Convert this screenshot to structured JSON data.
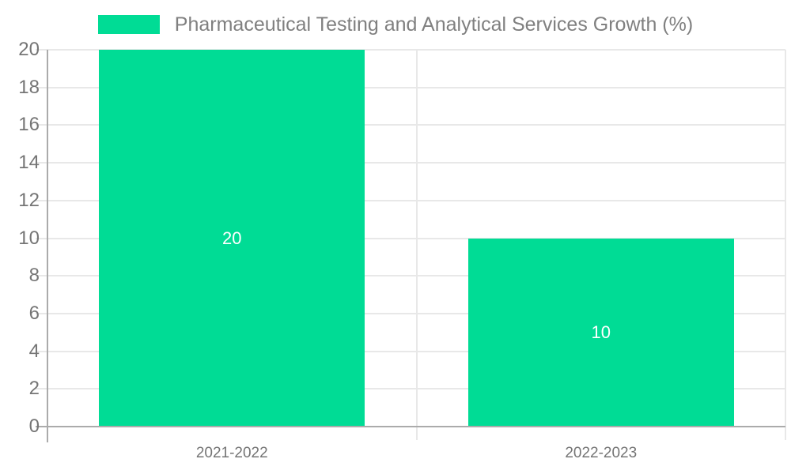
{
  "chart_data": {
    "type": "bar",
    "title": "",
    "series_name": "Pharmaceutical Testing and Analytical Services Growth (%)",
    "categories": [
      "2021-2022",
      "2022-2023"
    ],
    "values": [
      20,
      10
    ],
    "value_labels": [
      "20",
      "10"
    ],
    "xlabel": "",
    "ylabel": "",
    "ylim": [
      0,
      20
    ],
    "ytick_step": 2,
    "ytick_labels": [
      "0",
      "2",
      "4",
      "6",
      "8",
      "10",
      "12",
      "14",
      "16",
      "18",
      "20"
    ],
    "grid": true,
    "legend_position": "top-center",
    "colors": {
      "bar": "#00DC95",
      "grid": "#E8E8E8",
      "axis": "#ABABAB",
      "axis_tick_label": "#757575",
      "legend_text": "#808080",
      "value_label": "#FFFFFF",
      "background": "#FFFFFF"
    }
  }
}
